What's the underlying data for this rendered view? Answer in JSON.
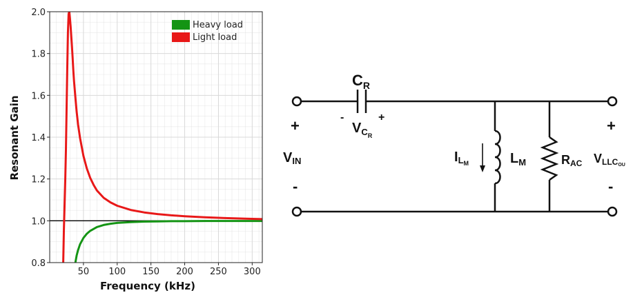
{
  "chart_data": {
    "type": "line",
    "xlabel": "Frequency (kHz)",
    "ylabel": "Resonant Gain",
    "xlim": [
      0,
      315
    ],
    "ylim": [
      0.8,
      2.0
    ],
    "x_ticks": [
      50,
      100,
      150,
      200,
      250,
      300
    ],
    "y_ticks": [
      0.8,
      1.0,
      1.2,
      1.4,
      1.6,
      1.8,
      2.0
    ],
    "y_tick_labels": [
      "0.8",
      "1.0",
      "1.2",
      "1.4",
      "1.6",
      "1.8",
      "2.0"
    ],
    "grid": true,
    "reference_line": 1.0,
    "legend_position": "top-right",
    "series": [
      {
        "name": "Heavy load",
        "color": "#149414",
        "x": [
          38,
          40,
          42,
          45,
          50,
          55,
          60,
          70,
          80,
          90,
          100,
          120,
          140,
          160,
          180,
          200,
          230,
          260,
          290,
          315
        ],
        "y": [
          0.8,
          0.835,
          0.86,
          0.888,
          0.918,
          0.938,
          0.952,
          0.97,
          0.98,
          0.986,
          0.99,
          0.994,
          0.996,
          0.997,
          0.998,
          0.998,
          0.999,
          0.999,
          0.999,
          0.999
        ]
      },
      {
        "name": "Light load",
        "color": "#e81818",
        "x": [
          20,
          21,
          22,
          23,
          24,
          25,
          26,
          27,
          28,
          29,
          30,
          31,
          32,
          33,
          34,
          35,
          36,
          38,
          40,
          42,
          45,
          50,
          55,
          60,
          65,
          70,
          80,
          90,
          100,
          120,
          140,
          160,
          180,
          200,
          230,
          260,
          290,
          315
        ],
        "y": [
          0.8,
          0.95,
          1.07,
          1.19,
          1.34,
          1.52,
          1.72,
          1.9,
          1.99,
          2.0,
          1.97,
          1.93,
          1.88,
          1.83,
          1.78,
          1.72,
          1.67,
          1.59,
          1.52,
          1.46,
          1.395,
          1.31,
          1.25,
          1.205,
          1.172,
          1.145,
          1.11,
          1.088,
          1.072,
          1.052,
          1.04,
          1.032,
          1.026,
          1.022,
          1.017,
          1.013,
          1.01,
          1.008
        ]
      }
    ]
  },
  "circuit": {
    "cap_main": "C",
    "cap_sub": "R",
    "vc_main": "V",
    "vc_sub": "C",
    "vc_subsub": "R",
    "vc_minus": "-",
    "vc_plus": "+",
    "vin_main": "V",
    "vin_sub": "IN",
    "vin_plus": "+",
    "vin_minus": "-",
    "il_main": "I",
    "il_sub": "L",
    "il_subsub": "M",
    "lm_main": "L",
    "lm_sub": "M",
    "rac_main": "R",
    "rac_sub": "AC",
    "vout_main": "V",
    "vout_sub": "LLC",
    "vout_subsub": "OU",
    "vout_plus": "+",
    "vout_minus": "-"
  },
  "colors": {
    "grid": "#d8d8d8",
    "axis": "#222222",
    "reference_line": "#000000",
    "wire": "#111111"
  }
}
